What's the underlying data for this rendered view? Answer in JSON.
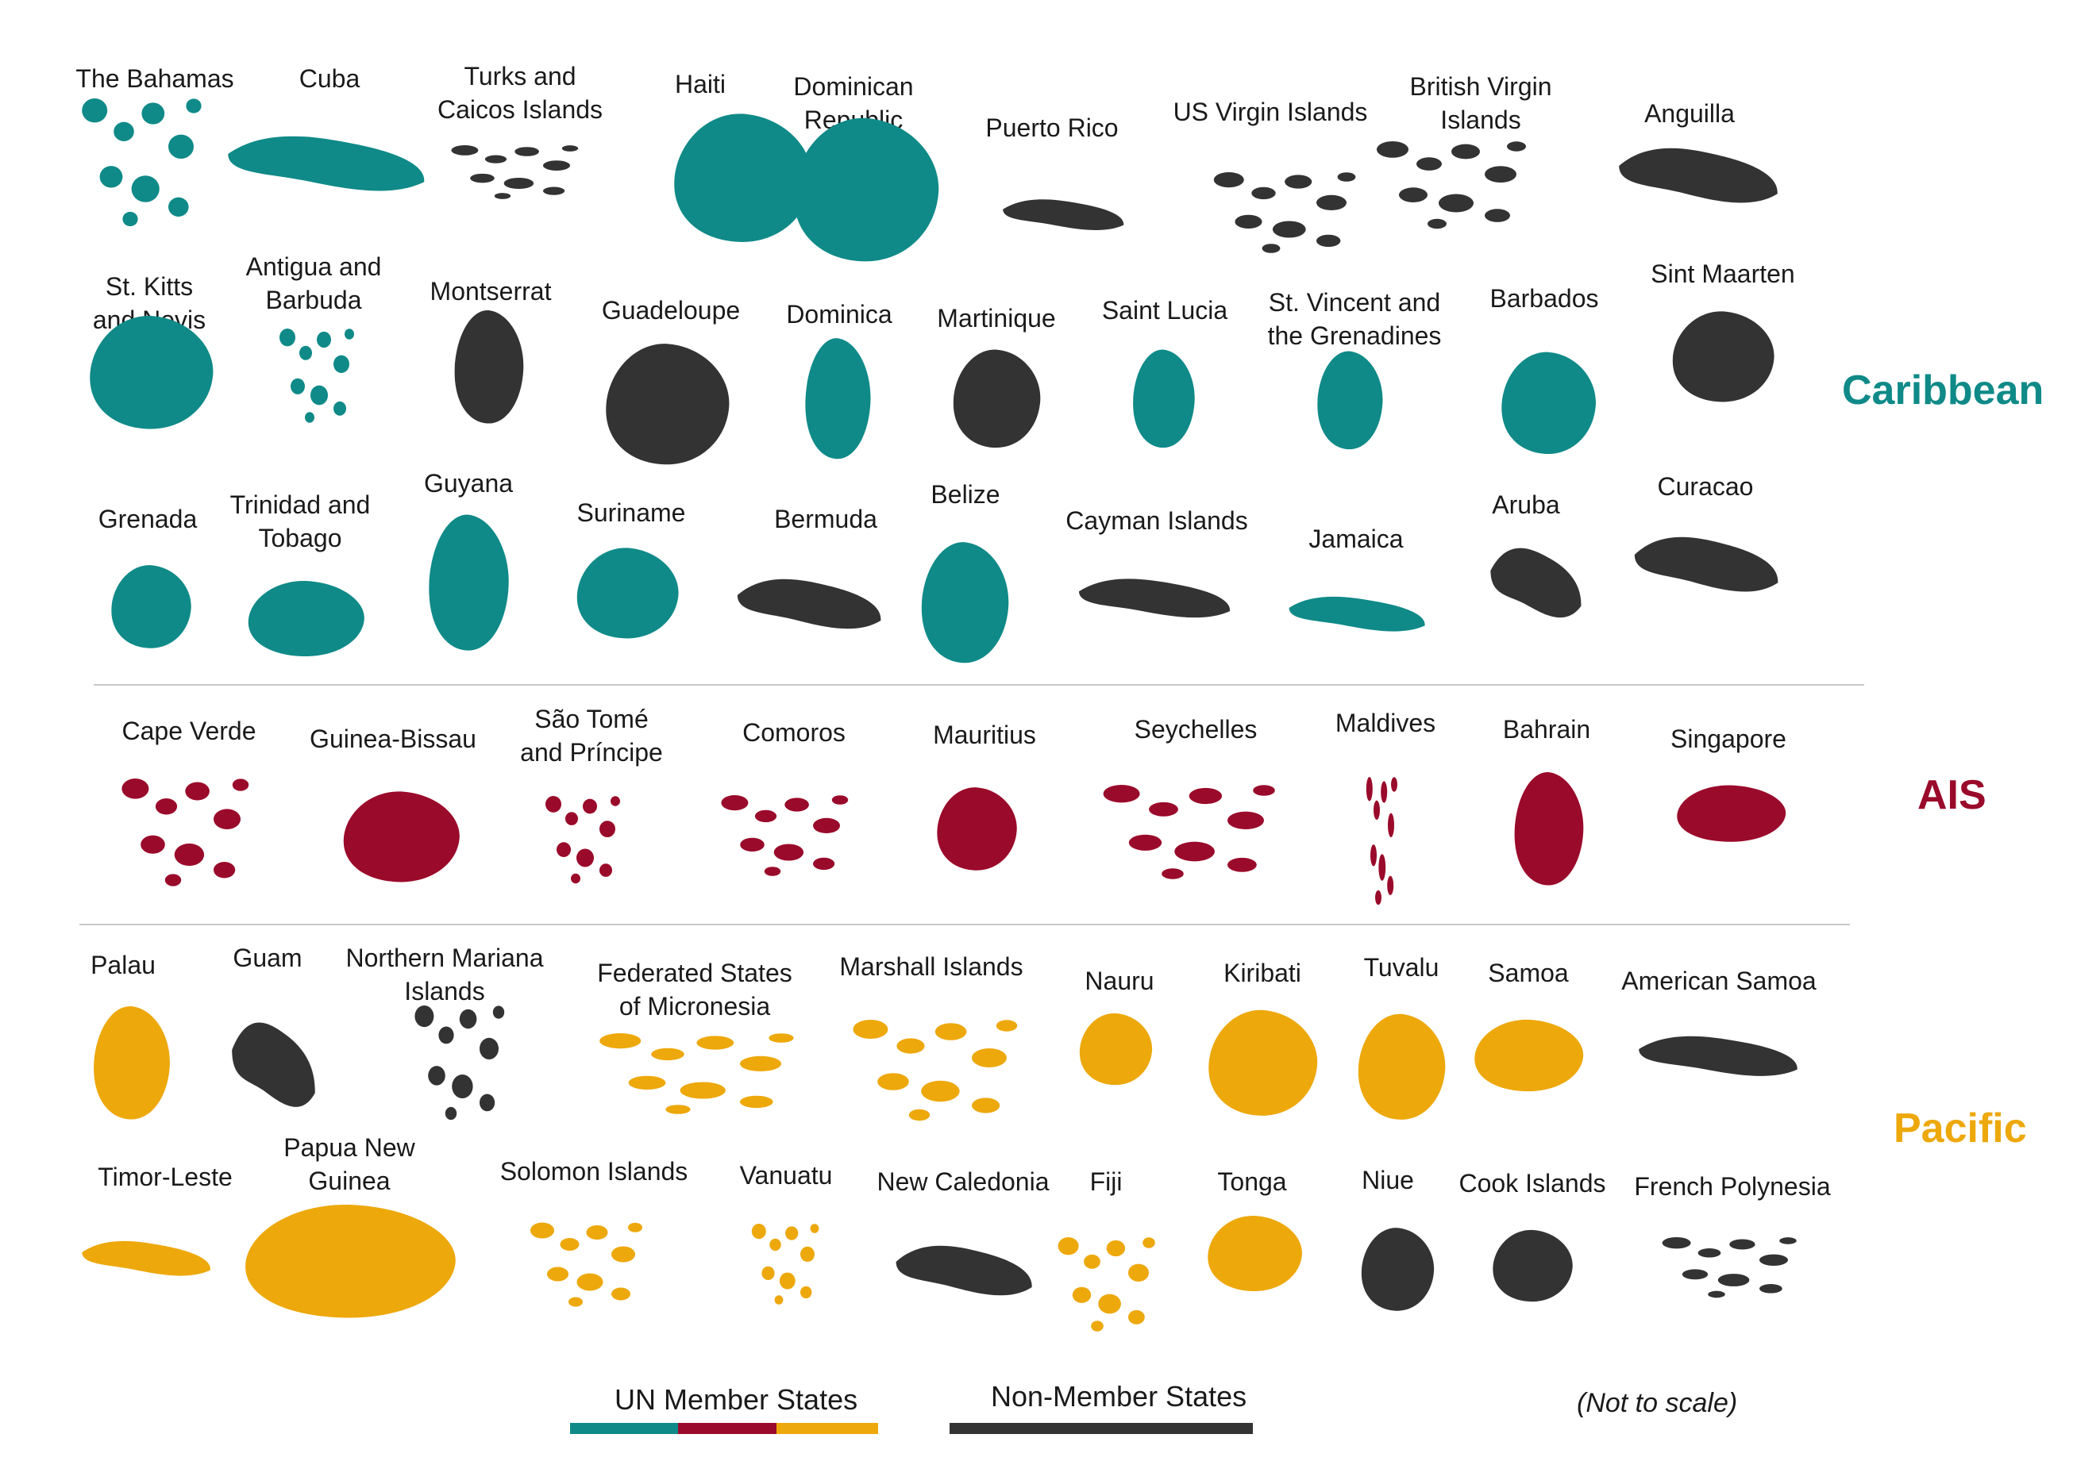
{
  "colors": {
    "caribbean": "#0f8a88",
    "ais": "#9a0a2a",
    "pacific": "#eda80c",
    "non_member": "#333333"
  },
  "regions": {
    "caribbean": "Caribbean",
    "ais": "AIS",
    "pacific": "Pacific"
  },
  "countries": [
    {
      "lines": [
        "The Bahamas"
      ],
      "group": "caribbean"
    },
    {
      "lines": [
        "Cuba"
      ],
      "group": "caribbean"
    },
    {
      "lines": [
        "Turks and",
        "Caicos Islands"
      ],
      "group": "non_member"
    },
    {
      "lines": [
        "Haiti"
      ],
      "group": "caribbean"
    },
    {
      "lines": [
        "Dominican",
        "Republic"
      ],
      "group": "caribbean"
    },
    {
      "lines": [
        "Puerto Rico"
      ],
      "group": "non_member"
    },
    {
      "lines": [
        "US Virgin Islands"
      ],
      "group": "non_member"
    },
    {
      "lines": [
        "British Virgin",
        "Islands"
      ],
      "group": "non_member"
    },
    {
      "lines": [
        "Anguilla"
      ],
      "group": "non_member"
    },
    {
      "lines": [
        "St. Kitts",
        "and Nevis"
      ],
      "group": "caribbean"
    },
    {
      "lines": [
        "Antigua and",
        "Barbuda"
      ],
      "group": "caribbean"
    },
    {
      "lines": [
        "Montserrat"
      ],
      "group": "non_member"
    },
    {
      "lines": [
        "Guadeloupe"
      ],
      "group": "non_member"
    },
    {
      "lines": [
        "Dominica"
      ],
      "group": "caribbean"
    },
    {
      "lines": [
        "Martinique"
      ],
      "group": "non_member"
    },
    {
      "lines": [
        "Saint Lucia"
      ],
      "group": "caribbean"
    },
    {
      "lines": [
        "St. Vincent and",
        "the Grenadines"
      ],
      "group": "caribbean"
    },
    {
      "lines": [
        "Barbados"
      ],
      "group": "caribbean"
    },
    {
      "lines": [
        "Sint Maarten"
      ],
      "group": "non_member"
    },
    {
      "lines": [
        "Grenada"
      ],
      "group": "caribbean"
    },
    {
      "lines": [
        "Trinidad and",
        "Tobago"
      ],
      "group": "caribbean"
    },
    {
      "lines": [
        "Guyana"
      ],
      "group": "caribbean"
    },
    {
      "lines": [
        "Suriname"
      ],
      "group": "caribbean"
    },
    {
      "lines": [
        "Bermuda"
      ],
      "group": "non_member"
    },
    {
      "lines": [
        "Belize"
      ],
      "group": "caribbean"
    },
    {
      "lines": [
        "Cayman Islands"
      ],
      "group": "non_member"
    },
    {
      "lines": [
        "Jamaica"
      ],
      "group": "caribbean"
    },
    {
      "lines": [
        "Aruba"
      ],
      "group": "non_member"
    },
    {
      "lines": [
        "Curacao"
      ],
      "group": "non_member"
    },
    {
      "lines": [
        "Cape Verde"
      ],
      "group": "ais"
    },
    {
      "lines": [
        "Guinea-Bissau"
      ],
      "group": "ais"
    },
    {
      "lines": [
        "São Tomé",
        "and Príncipe"
      ],
      "group": "ais"
    },
    {
      "lines": [
        "Comoros"
      ],
      "group": "ais"
    },
    {
      "lines": [
        "Mauritius"
      ],
      "group": "ais"
    },
    {
      "lines": [
        "Seychelles"
      ],
      "group": "ais"
    },
    {
      "lines": [
        "Maldives"
      ],
      "group": "ais"
    },
    {
      "lines": [
        "Bahrain"
      ],
      "group": "ais"
    },
    {
      "lines": [
        "Singapore"
      ],
      "group": "ais"
    },
    {
      "lines": [
        "Palau"
      ],
      "group": "pacific"
    },
    {
      "lines": [
        "Guam"
      ],
      "group": "non_member"
    },
    {
      "lines": [
        "Northern Mariana",
        "Islands"
      ],
      "group": "non_member"
    },
    {
      "lines": [
        "Federated States",
        "of Micronesia"
      ],
      "group": "pacific"
    },
    {
      "lines": [
        "Marshall Islands"
      ],
      "group": "pacific"
    },
    {
      "lines": [
        "Nauru"
      ],
      "group": "pacific"
    },
    {
      "lines": [
        "Kiribati"
      ],
      "group": "pacific"
    },
    {
      "lines": [
        "Tuvalu"
      ],
      "group": "pacific"
    },
    {
      "lines": [
        "Samoa"
      ],
      "group": "pacific"
    },
    {
      "lines": [
        "American Samoa"
      ],
      "group": "non_member"
    },
    {
      "lines": [
        "Timor-Leste"
      ],
      "group": "pacific"
    },
    {
      "lines": [
        "Papua New",
        "Guinea"
      ],
      "group": "pacific"
    },
    {
      "lines": [
        "Solomon Islands"
      ],
      "group": "pacific"
    },
    {
      "lines": [
        "Vanuatu"
      ],
      "group": "pacific"
    },
    {
      "lines": [
        "New Caledonia"
      ],
      "group": "non_member"
    },
    {
      "lines": [
        "Fiji"
      ],
      "group": "pacific"
    },
    {
      "lines": [
        "Tonga"
      ],
      "group": "pacific"
    },
    {
      "lines": [
        "Niue"
      ],
      "group": "non_member"
    },
    {
      "lines": [
        "Cook Islands"
      ],
      "group": "non_member"
    },
    {
      "lines": [
        "French Polynesia"
      ],
      "group": "non_member"
    }
  ],
  "legend": {
    "member_label": "UN Member States",
    "non_member_label": "Non-Member States",
    "note": "(Not to scale)"
  }
}
